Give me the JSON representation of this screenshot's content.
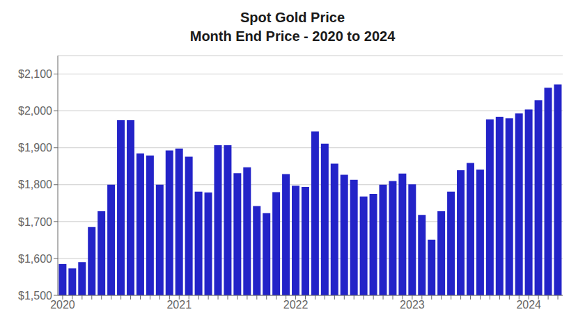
{
  "chart_data": {
    "type": "bar",
    "title": "Spot Gold Price",
    "subtitle": "Month End Price - 2020 to 2024",
    "categories": [
      "2020",
      null,
      null,
      null,
      null,
      null,
      null,
      null,
      null,
      null,
      null,
      null,
      "2021",
      null,
      null,
      null,
      null,
      null,
      null,
      null,
      null,
      null,
      null,
      null,
      "2022",
      null,
      null,
      null,
      null,
      null,
      null,
      null,
      null,
      null,
      null,
      null,
      "2023",
      null,
      null,
      null,
      null,
      null,
      null,
      null,
      null,
      null,
      null,
      null,
      "2024",
      null,
      null,
      null
    ],
    "values": [
      1585,
      1573,
      1590,
      1685,
      1728,
      1800,
      1975,
      1975,
      1885,
      1879,
      1800,
      1893,
      1898,
      1876,
      1781,
      1779,
      1907,
      1907,
      1831,
      1847,
      1742,
      1723,
      1780,
      1829,
      1797,
      1794,
      1944,
      1911,
      1857,
      1827,
      1813,
      1768,
      1775,
      1800,
      1810,
      1830,
      1801,
      1718,
      1651,
      1728,
      1781,
      1839,
      1859,
      1841,
      1977,
      1984,
      1980,
      1993,
      2004,
      2029,
      2063,
      2072
    ],
    "color": "#2323c8",
    "ylim": [
      1500,
      2150
    ],
    "yticks": [
      {
        "value": 1500,
        "label": "$1,500"
      },
      {
        "value": 1600,
        "label": "$1,600"
      },
      {
        "value": 1700,
        "label": "$1,700"
      },
      {
        "value": 1800,
        "label": "$1,800"
      },
      {
        "value": 1900,
        "label": "$1,900"
      },
      {
        "value": 2000,
        "label": "$2,000"
      },
      {
        "value": 2100,
        "label": "$2,100"
      }
    ],
    "grid": true
  }
}
